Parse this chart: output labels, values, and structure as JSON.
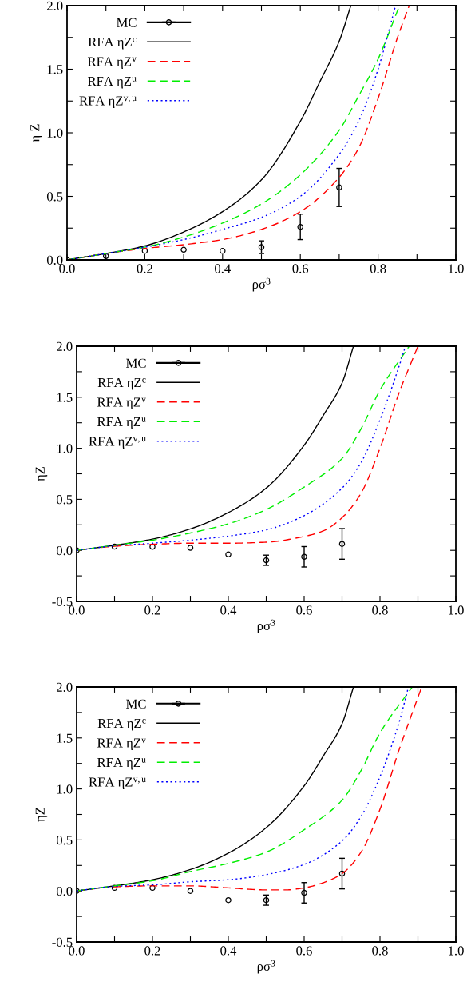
{
  "chart_data": [
    {
      "type": "line",
      "xlabel": "ρσ$^{3}$",
      "ylabel": "η Z",
      "xlim": [
        0,
        1
      ],
      "ylim": [
        0,
        2
      ],
      "xticks": [
        {
          "value": 0,
          "label": "0.0"
        },
        {
          "value": 0.1,
          "label": null
        },
        {
          "value": 0.2,
          "label": "0.2"
        },
        {
          "value": 0.3,
          "label": null
        },
        {
          "value": 0.4,
          "label": "0.4"
        },
        {
          "value": 0.5,
          "label": null
        },
        {
          "value": 0.6,
          "label": "0.6"
        },
        {
          "value": 0.7,
          "label": null
        },
        {
          "value": 0.8,
          "label": "0.8"
        },
        {
          "value": 0.9,
          "label": null
        },
        {
          "value": 1,
          "label": "1.0"
        }
      ],
      "yticks": [
        {
          "value": 0,
          "label": "0.0"
        },
        {
          "value": 0.25,
          "label": null
        },
        {
          "value": 0.5,
          "label": "0.5"
        },
        {
          "value": 0.75,
          "label": null
        },
        {
          "value": 1,
          "label": "1.0"
        },
        {
          "value": 1.25,
          "label": null
        },
        {
          "value": 1.5,
          "label": "1.5"
        },
        {
          "value": 1.75,
          "label": null
        },
        {
          "value": 2,
          "label": "2.0"
        }
      ],
      "legend": "top left",
      "grid": false,
      "series": [
        {
          "name": "MC",
          "type": "scatter",
          "marker": "circle",
          "color": "#000000",
          "x": [
            0,
            0.1,
            0.2,
            0.3,
            0.4,
            0.5,
            0.6,
            0.7
          ],
          "values": [
            0,
            0.03,
            0.07,
            0.08,
            0.07,
            0.1,
            0.26,
            0.57
          ],
          "errors": [
            null,
            null,
            null,
            null,
            null,
            0.05,
            0.1,
            0.15
          ]
        },
        {
          "name": "RFA ηZ$^{c}$",
          "line_style": "solid",
          "color": "#000000",
          "x": [
            0,
            0.1,
            0.2,
            0.3,
            0.4,
            0.5,
            0.6,
            0.65,
            0.7,
            0.73
          ],
          "values": [
            0,
            0.05,
            0.11,
            0.22,
            0.38,
            0.63,
            1.09,
            1.4,
            1.72,
            2.0
          ]
        },
        {
          "name": "RFA ηZ$^{v}$",
          "type": "line",
          "line_style": "dashed",
          "color": "#ff0000",
          "x": [
            0,
            0.1,
            0.2,
            0.3,
            0.4,
            0.5,
            0.6,
            0.7,
            0.75,
            0.8,
            0.85,
            0.88
          ],
          "values": [
            0,
            0.05,
            0.09,
            0.12,
            0.16,
            0.24,
            0.38,
            0.65,
            0.88,
            1.27,
            1.75,
            2.0
          ]
        },
        {
          "name": "RFA ηZ$^{u}$",
          "type": "line",
          "line_style": "dashed",
          "color": "#00ee00",
          "x": [
            0,
            0.1,
            0.2,
            0.3,
            0.4,
            0.5,
            0.6,
            0.7,
            0.75,
            0.8,
            0.855
          ],
          "values": [
            0,
            0.05,
            0.1,
            0.18,
            0.29,
            0.44,
            0.67,
            1.02,
            1.29,
            1.58,
            2.0
          ]
        },
        {
          "name": "RFA ηZ$^{v,u}$",
          "type": "line",
          "line_style": "dotted",
          "color": "#0000ff",
          "x": [
            0,
            0.1,
            0.2,
            0.3,
            0.4,
            0.5,
            0.6,
            0.7,
            0.75,
            0.8,
            0.845
          ],
          "values": [
            0,
            0.05,
            0.1,
            0.16,
            0.24,
            0.335,
            0.5,
            0.83,
            1.09,
            1.5,
            2.0
          ]
        }
      ]
    },
    {
      "type": "line",
      "xlabel": "ρσ$^{3}$",
      "ylabel": "ηZ",
      "xlim": [
        0,
        1
      ],
      "ylim": [
        -0.5,
        2
      ],
      "xticks": [
        {
          "value": 0,
          "label": "0.0"
        },
        {
          "value": 0.1,
          "label": null
        },
        {
          "value": 0.2,
          "label": "0.2"
        },
        {
          "value": 0.3,
          "label": null
        },
        {
          "value": 0.4,
          "label": "0.4"
        },
        {
          "value": 0.5,
          "label": null
        },
        {
          "value": 0.6,
          "label": "0.6"
        },
        {
          "value": 0.7,
          "label": null
        },
        {
          "value": 0.8,
          "label": "0.8"
        },
        {
          "value": 0.9,
          "label": null
        },
        {
          "value": 1,
          "label": "1.0"
        }
      ],
      "yticks": [
        {
          "value": -0.5,
          "label": "-0.5"
        },
        {
          "value": -0.25,
          "label": null
        },
        {
          "value": 0,
          "label": "0.0"
        },
        {
          "value": 0.25,
          "label": null
        },
        {
          "value": 0.5,
          "label": "0.5"
        },
        {
          "value": 0.75,
          "label": null
        },
        {
          "value": 1,
          "label": "1.0"
        },
        {
          "value": 1.25,
          "label": null
        },
        {
          "value": 1.5,
          "label": "1.5"
        },
        {
          "value": 1.75,
          "label": null
        },
        {
          "value": 2,
          "label": "2.0"
        }
      ],
      "legend": "top left",
      "grid": false,
      "series": [
        {
          "name": "MC",
          "type": "scatter",
          "marker": "circle",
          "color": "#000000",
          "x": [
            0,
            0.1,
            0.2,
            0.3,
            0.4,
            0.5,
            0.6,
            0.7
          ],
          "values": [
            0,
            0.037,
            0.035,
            0.025,
            -0.04,
            -0.097,
            -0.063,
            0.063
          ],
          "errors": [
            null,
            null,
            null,
            null,
            null,
            0.05,
            0.1,
            0.15
          ]
        },
        {
          "name": "RFA ηZ$^{c}$",
          "line_style": "solid",
          "color": "#000000",
          "x": [
            0,
            0.1,
            0.2,
            0.3,
            0.4,
            0.5,
            0.6,
            0.65,
            0.7,
            0.73
          ],
          "values": [
            0,
            0.05,
            0.11,
            0.21,
            0.37,
            0.61,
            1.03,
            1.32,
            1.64,
            2.0
          ]
        },
        {
          "name": "RFA ηZ$^{v}$",
          "type": "line",
          "line_style": "dashed",
          "color": "#ff0000",
          "x": [
            0,
            0.1,
            0.2,
            0.3,
            0.4,
            0.5,
            0.6,
            0.65,
            0.7,
            0.75,
            0.8,
            0.85,
            0.9
          ],
          "values": [
            0,
            0.04,
            0.06,
            0.07,
            0.07,
            0.08,
            0.136,
            0.19,
            0.32,
            0.56,
            1.0,
            1.54,
            2.0
          ]
        },
        {
          "name": "RFA ηZ$^{u}$",
          "type": "line",
          "line_style": "dashed",
          "color": "#00ee00",
          "x": [
            0,
            0.1,
            0.2,
            0.3,
            0.4,
            0.5,
            0.6,
            0.7,
            0.75,
            0.8,
            0.877
          ],
          "values": [
            0,
            0.05,
            0.1,
            0.17,
            0.26,
            0.4,
            0.62,
            0.9,
            1.19,
            1.57,
            2.0
          ]
        },
        {
          "name": "RFA ηZ$^{v,u}$",
          "type": "line",
          "line_style": "dotted",
          "color": "#0000ff",
          "x": [
            0,
            0.1,
            0.2,
            0.3,
            0.4,
            0.5,
            0.6,
            0.7,
            0.75,
            0.8,
            0.85,
            0.867
          ],
          "values": [
            0,
            0.045,
            0.07,
            0.1,
            0.14,
            0.2,
            0.34,
            0.61,
            0.86,
            1.28,
            1.8,
            2.0
          ]
        }
      ]
    },
    {
      "type": "line",
      "xlabel": "ρσ$^{3}$",
      "ylabel": "ηZ",
      "xlim": [
        0,
        1
      ],
      "ylim": [
        -0.5,
        2
      ],
      "xticks": [
        {
          "value": 0,
          "label": "0.0"
        },
        {
          "value": 0.1,
          "label": null
        },
        {
          "value": 0.2,
          "label": "0.2"
        },
        {
          "value": 0.3,
          "label": null
        },
        {
          "value": 0.4,
          "label": "0.4"
        },
        {
          "value": 0.5,
          "label": null
        },
        {
          "value": 0.6,
          "label": "0.6"
        },
        {
          "value": 0.7,
          "label": null
        },
        {
          "value": 0.8,
          "label": "0.8"
        },
        {
          "value": 0.9,
          "label": null
        },
        {
          "value": 1,
          "label": "1.0"
        }
      ],
      "yticks": [
        {
          "value": -0.5,
          "label": "-0.5"
        },
        {
          "value": -0.25,
          "label": null
        },
        {
          "value": 0,
          "label": "0.0"
        },
        {
          "value": 0.25,
          "label": null
        },
        {
          "value": 0.5,
          "label": "0.5"
        },
        {
          "value": 0.75,
          "label": null
        },
        {
          "value": 1,
          "label": "1.0"
        },
        {
          "value": 1.25,
          "label": null
        },
        {
          "value": 1.5,
          "label": "1.5"
        },
        {
          "value": 1.75,
          "label": null
        },
        {
          "value": 2,
          "label": "2.0"
        }
      ],
      "legend": "top left",
      "grid": false,
      "series": [
        {
          "name": "MC",
          "type": "scatter",
          "marker": "circle",
          "color": "#000000",
          "x": [
            0,
            0.1,
            0.2,
            0.3,
            0.4,
            0.5,
            0.6,
            0.7
          ],
          "values": [
            0,
            0.03,
            0.03,
            0.0,
            -0.09,
            -0.09,
            -0.018,
            0.17
          ],
          "errors": [
            null,
            null,
            null,
            null,
            null,
            0.05,
            0.1,
            0.15
          ]
        },
        {
          "name": "RFA ηZ$^{c}$",
          "line_style": "solid",
          "color": "#000000",
          "x": [
            0,
            0.1,
            0.2,
            0.3,
            0.4,
            0.5,
            0.6,
            0.65,
            0.7,
            0.73
          ],
          "values": [
            0,
            0.05,
            0.11,
            0.21,
            0.37,
            0.62,
            1.03,
            1.32,
            1.64,
            2.0
          ]
        },
        {
          "name": "RFA ηZ$^{v}$",
          "type": "line",
          "line_style": "dashed",
          "color": "#ff0000",
          "x": [
            0,
            0.1,
            0.2,
            0.3,
            0.4,
            0.5,
            0.55,
            0.6,
            0.65,
            0.7,
            0.75,
            0.8,
            0.85,
            0.91
          ],
          "values": [
            0,
            0.04,
            0.05,
            0.05,
            0.03,
            0.01,
            0.01,
            0.03,
            0.08,
            0.17,
            0.38,
            0.8,
            1.38,
            2.0
          ]
        },
        {
          "name": "RFA ηZ$^{u}$",
          "type": "line",
          "line_style": "dashed",
          "color": "#00ee00",
          "x": [
            0,
            0.1,
            0.2,
            0.3,
            0.4,
            0.5,
            0.6,
            0.7,
            0.75,
            0.8,
            0.885
          ],
          "values": [
            0,
            0.05,
            0.1,
            0.19,
            0.27,
            0.38,
            0.6,
            0.89,
            1.18,
            1.55,
            2.0
          ]
        },
        {
          "name": "RFA ηZ$^{v,u}$",
          "type": "line",
          "line_style": "dotted",
          "color": "#0000ff",
          "x": [
            0,
            0.1,
            0.2,
            0.3,
            0.4,
            0.5,
            0.6,
            0.7,
            0.75,
            0.8,
            0.85,
            0.875
          ],
          "values": [
            0,
            0.045,
            0.06,
            0.09,
            0.11,
            0.16,
            0.26,
            0.49,
            0.73,
            1.12,
            1.65,
            2.0
          ]
        }
      ]
    }
  ]
}
